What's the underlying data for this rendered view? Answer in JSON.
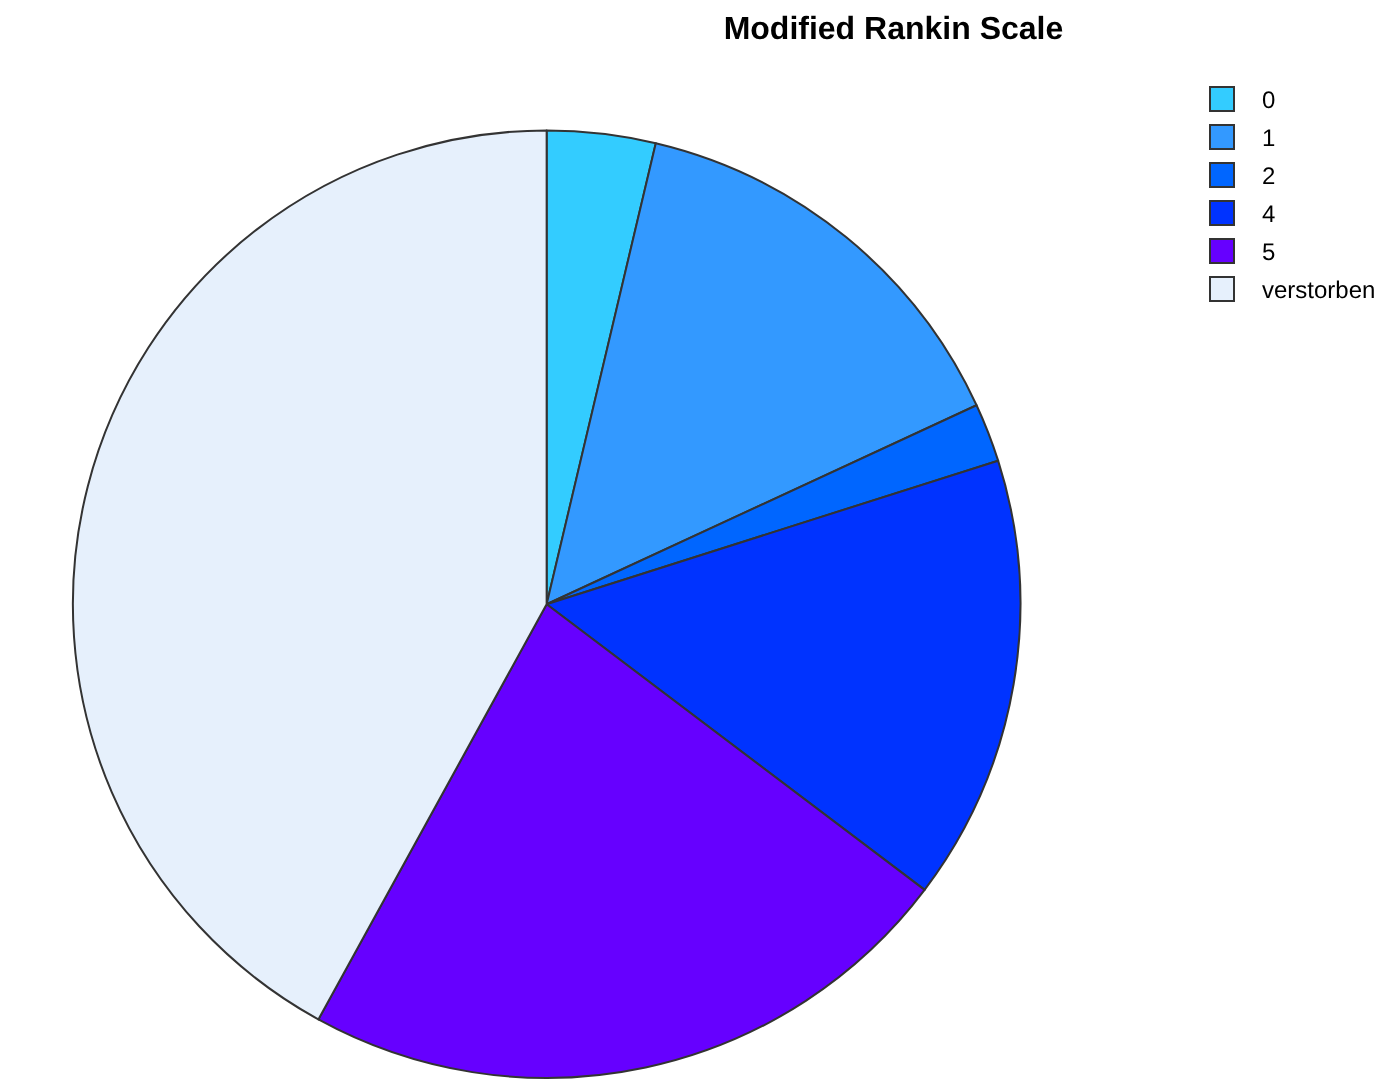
{
  "chart_data": {
    "type": "pie",
    "title": "Modified Rankin Scale",
    "categories": [
      "0",
      "1",
      "2",
      "4",
      "5",
      "verstorben"
    ],
    "values": [
      3.7,
      14.4,
      2.0,
      15.2,
      22.7,
      42.0
    ],
    "colors": [
      "#33ccff",
      "#3399ff",
      "#0066ff",
      "#0033ff",
      "#6600ff",
      "#e6f0fc"
    ],
    "legend": "top right"
  }
}
